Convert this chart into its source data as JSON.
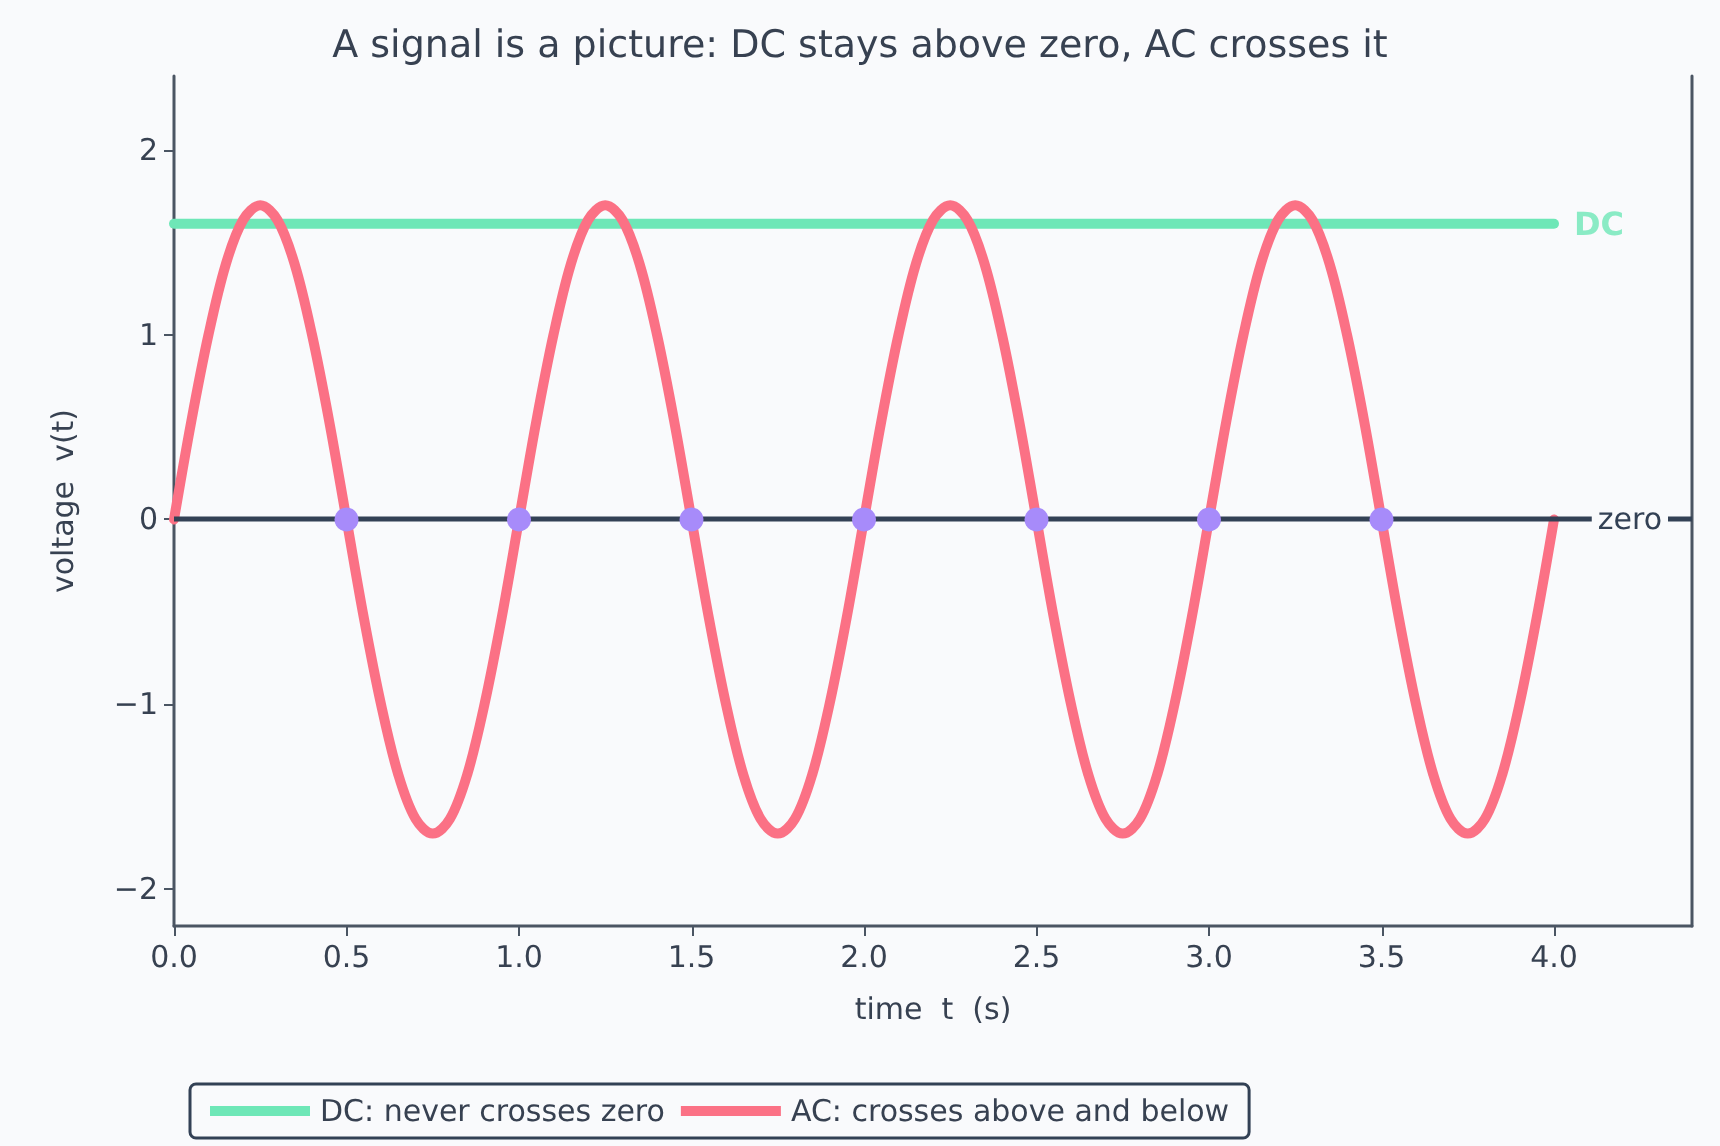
{
  "chart_data": {
    "type": "line",
    "title": "A signal is a picture: DC stays above zero, AC crosses it",
    "xlabel": "time  t  (s)",
    "ylabel": "voltage  v(t)",
    "xlim": [
      0,
      4.4
    ],
    "ylim": [
      -2.2,
      2.4
    ],
    "xticks": [
      {
        "value": 0,
        "label": "0.0"
      },
      {
        "value": 0.5,
        "label": "0.5"
      },
      {
        "value": 1,
        "label": "1.0"
      },
      {
        "value": 1.5,
        "label": "1.5"
      },
      {
        "value": 2,
        "label": "2.0"
      },
      {
        "value": 2.5,
        "label": "2.5"
      },
      {
        "value": 3,
        "label": "3.0"
      },
      {
        "value": 3.5,
        "label": "3.5"
      },
      {
        "value": 4,
        "label": "4.0"
      }
    ],
    "yticks": [
      {
        "value": -2,
        "label": "−2"
      },
      {
        "value": -1,
        "label": "−1"
      },
      0,
      1,
      2
    ],
    "grid": false,
    "legend": "bottom left",
    "marker": "none",
    "line_style": "solid",
    "series": [
      {
        "name": "DC: never crosses zero",
        "color": "#6ee7b7",
        "x": [
          0,
          4
        ],
        "values": [
          1.6,
          1.6
        ]
      },
      {
        "name": "AC: crosses above and below",
        "color": "#fb7185",
        "x": [
          0,
          0.05,
          0.1,
          0.15,
          0.2,
          0.25,
          0.3,
          0.35,
          0.4,
          0.45,
          0.5,
          0.55,
          0.6,
          0.65,
          0.7,
          0.75,
          0.8,
          0.85,
          0.9,
          0.95,
          1,
          1.05,
          1.1,
          1.15,
          1.2,
          1.25,
          1.3,
          1.35,
          1.4,
          1.45,
          1.5,
          1.55,
          1.6,
          1.65,
          1.7,
          1.75,
          1.8,
          1.85,
          1.9,
          1.95,
          2,
          2.05,
          2.1,
          2.15,
          2.2,
          2.25,
          2.3,
          2.35,
          2.4,
          2.45,
          2.5,
          2.55,
          2.6,
          2.65,
          2.7,
          2.75,
          2.8,
          2.85,
          2.9,
          2.95,
          3,
          3.05,
          3.1,
          3.15,
          3.2,
          3.25,
          3.3,
          3.35,
          3.4,
          3.45,
          3.5,
          3.55,
          3.6,
          3.65,
          3.7,
          3.75,
          3.8,
          3.85,
          3.9,
          3.95,
          4
        ],
        "values": [
          0,
          0.53,
          1.0,
          1.38,
          1.62,
          1.7,
          1.62,
          1.38,
          1.0,
          0.53,
          0,
          -0.53,
          -1.0,
          -1.38,
          -1.62,
          -1.7,
          -1.62,
          -1.38,
          -1.0,
          -0.53,
          0,
          0.53,
          1.0,
          1.38,
          1.62,
          1.7,
          1.62,
          1.38,
          1.0,
          0.53,
          0,
          -0.53,
          -1.0,
          -1.38,
          -1.62,
          -1.7,
          -1.62,
          -1.38,
          -1.0,
          -0.53,
          0,
          0.53,
          1.0,
          1.38,
          1.62,
          1.7,
          1.62,
          1.38,
          1.0,
          0.53,
          0,
          -0.53,
          -1.0,
          -1.38,
          -1.62,
          -1.7,
          -1.62,
          -1.38,
          -1.0,
          -0.53,
          0,
          0.53,
          1.0,
          1.38,
          1.62,
          1.7,
          1.62,
          1.38,
          1.0,
          0.53,
          0,
          -0.53,
          -1.0,
          -1.38,
          -1.62,
          -1.7,
          -1.62,
          -1.38,
          -1.0,
          -0.53,
          0
        ]
      },
      {
        "type": "scatter",
        "marker": "circle",
        "color": "#a78bfa",
        "x": [
          0.5,
          1,
          1.5,
          2,
          2.5,
          3,
          3.5
        ],
        "values": [
          0,
          0,
          0,
          0,
          0,
          0,
          0
        ]
      }
    ],
    "ref_lines": [
      {
        "axis": "y",
        "value": 0,
        "label": "zero",
        "color": "#334155"
      }
    ],
    "annotations": [
      {
        "text": "DC",
        "x": 4,
        "y": 1.6
      }
    ]
  }
}
